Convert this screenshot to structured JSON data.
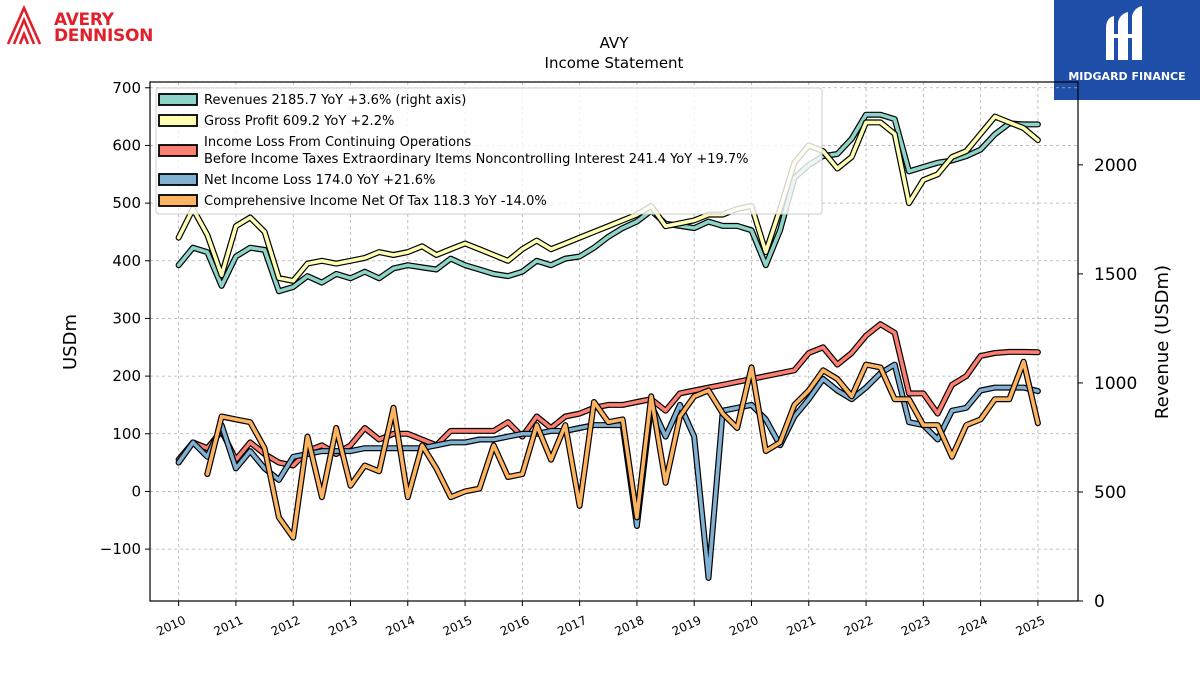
{
  "brand": {
    "company_logo_text": "AVERY\nDENNISON",
    "watermark_text": "MIDGARD FINANCE",
    "brand_color": "#e0202b",
    "watermark_color": "#1f4fa8"
  },
  "chart_data": {
    "type": "line",
    "title": "AVY",
    "subtitle": "Income Statement",
    "ylabel": "USDm",
    "y2label": "Revenue (USDm)",
    "ylim": [
      -190,
      710
    ],
    "y2lim": [
      0,
      2380
    ],
    "xlim": [
      2009.5,
      2025.7
    ],
    "yticks": [
      -100,
      0,
      100,
      200,
      300,
      400,
      500,
      600,
      700
    ],
    "yticklabels": [
      "−100",
      "0",
      "100",
      "200",
      "300",
      "400",
      "500",
      "600",
      "700"
    ],
    "y2ticks": [
      0,
      500,
      1000,
      1500,
      2000
    ],
    "y2ticklabels": [
      "0",
      "500",
      "1000",
      "1500",
      "2000"
    ],
    "xticks": [
      2010,
      2011,
      2012,
      2013,
      2014,
      2015,
      2016,
      2017,
      2018,
      2019,
      2020,
      2021,
      2022,
      2023,
      2024,
      2025
    ],
    "xticklabels": [
      "2010",
      "2011",
      "2012",
      "2013",
      "2014",
      "2015",
      "2016",
      "2017",
      "2018",
      "2019",
      "2020",
      "2021",
      "2022",
      "2023",
      "2024",
      "2025"
    ],
    "grid": true,
    "legend_position": "top-left",
    "series": [
      {
        "name": "Revenues",
        "legend": "Revenues  2185.7 YoY +3.6% (right axis)",
        "color": "#8dd3c7",
        "axis": "right",
        "x": [
          2010.0,
          2010.25,
          2010.5,
          2010.75,
          2011.0,
          2011.25,
          2011.5,
          2011.75,
          2012.0,
          2012.25,
          2012.5,
          2012.75,
          2013.0,
          2013.25,
          2013.5,
          2013.75,
          2014.0,
          2014.25,
          2014.5,
          2014.75,
          2015.0,
          2015.25,
          2015.5,
          2015.75,
          2016.0,
          2016.25,
          2016.5,
          2016.75,
          2017.0,
          2017.25,
          2017.5,
          2017.75,
          2018.0,
          2018.25,
          2018.5,
          2018.75,
          2019.0,
          2019.25,
          2019.5,
          2019.75,
          2020.0,
          2020.25,
          2020.5,
          2020.75,
          2021.0,
          2021.25,
          2021.5,
          2021.75,
          2022.0,
          2022.25,
          2022.5,
          2022.75,
          2023.0,
          2023.25,
          2023.5,
          2023.75,
          2024.0,
          2024.25,
          2024.5,
          2024.75,
          2025.0
        ],
        "values": [
          1540,
          1620,
          1600,
          1445,
          1580,
          1620,
          1610,
          1420,
          1440,
          1490,
          1460,
          1500,
          1480,
          1510,
          1480,
          1525,
          1540,
          1530,
          1520,
          1570,
          1540,
          1520,
          1500,
          1490,
          1510,
          1560,
          1540,
          1570,
          1580,
          1620,
          1670,
          1710,
          1740,
          1790,
          1730,
          1720,
          1710,
          1740,
          1720,
          1720,
          1700,
          1540,
          1700,
          1940,
          2000,
          2040,
          2050,
          2120,
          2230,
          2230,
          2210,
          1970,
          1990,
          2010,
          2020,
          2040,
          2070,
          2140,
          2190,
          2185.7,
          2185.7
        ]
      },
      {
        "name": "Gross Profit",
        "legend": "Gross Profit  609.2 YoY +2.2%",
        "color": "#ffffb3",
        "axis": "left",
        "x": [
          2010.0,
          2010.25,
          2010.5,
          2010.75,
          2011.0,
          2011.25,
          2011.5,
          2011.75,
          2012.0,
          2012.25,
          2012.5,
          2012.75,
          2013.0,
          2013.25,
          2013.5,
          2013.75,
          2014.0,
          2014.25,
          2014.5,
          2014.75,
          2015.0,
          2015.25,
          2015.5,
          2015.75,
          2016.0,
          2016.25,
          2016.5,
          2016.75,
          2017.0,
          2017.25,
          2017.5,
          2017.75,
          2018.0,
          2018.25,
          2018.5,
          2018.75,
          2019.0,
          2019.25,
          2019.5,
          2019.75,
          2020.0,
          2020.25,
          2020.5,
          2020.75,
          2021.0,
          2021.25,
          2021.5,
          2021.75,
          2022.0,
          2022.25,
          2022.5,
          2022.75,
          2023.0,
          2023.25,
          2023.5,
          2023.75,
          2024.0,
          2024.25,
          2024.5,
          2024.75,
          2025.0
        ],
        "values": [
          440,
          490,
          445,
          375,
          460,
          475,
          450,
          370,
          365,
          395,
          400,
          395,
          400,
          405,
          415,
          410,
          415,
          425,
          410,
          420,
          430,
          420,
          410,
          400,
          420,
          435,
          420,
          430,
          440,
          450,
          460,
          470,
          480,
          495,
          460,
          465,
          470,
          480,
          480,
          490,
          495,
          415,
          490,
          570,
          600,
          590,
          560,
          580,
          640,
          640,
          620,
          500,
          540,
          550,
          580,
          590,
          620,
          650,
          640,
          630,
          609.2
        ]
      },
      {
        "name": "Income Loss From Continuing Operations Before Income Taxes Extraordinary Items Noncontrolling Interest",
        "legend_line1": "Income Loss From Continuing Operations",
        "legend_line2": "Before Income Taxes Extraordinary Items Noncontrolling Interest  241.4 YoY +19.7%",
        "color": "#fb8072",
        "axis": "left",
        "x": [
          2010.0,
          2010.25,
          2010.5,
          2010.75,
          2011.0,
          2011.25,
          2011.5,
          2011.75,
          2012.0,
          2012.25,
          2012.5,
          2012.75,
          2013.0,
          2013.25,
          2013.5,
          2013.75,
          2014.0,
          2014.25,
          2014.5,
          2014.75,
          2015.0,
          2015.25,
          2015.5,
          2015.75,
          2016.0,
          2016.25,
          2016.5,
          2016.75,
          2017.0,
          2017.25,
          2017.5,
          2017.75,
          2018.0,
          2018.25,
          2018.5,
          2018.75,
          2019.0,
          2019.25,
          2019.5,
          2019.75,
          2020.0,
          2020.25,
          2020.5,
          2020.75,
          2021.0,
          2021.25,
          2021.5,
          2021.75,
          2022.0,
          2022.25,
          2022.5,
          2022.75,
          2023.0,
          2023.25,
          2023.5,
          2023.75,
          2024.0,
          2024.25,
          2024.5,
          2024.75,
          2025.0
        ],
        "values": [
          55,
          85,
          75,
          105,
          55,
          85,
          65,
          50,
          45,
          70,
          80,
          65,
          80,
          110,
          90,
          100,
          100,
          90,
          80,
          105,
          105,
          105,
          105,
          120,
          95,
          130,
          110,
          130,
          135,
          145,
          150,
          150,
          155,
          160,
          140,
          170,
          175,
          180,
          185,
          190,
          195,
          200,
          205,
          210,
          240,
          250,
          220,
          240,
          270,
          290,
          275,
          170,
          170,
          135,
          185,
          200,
          235,
          240,
          242,
          242,
          241.4
        ]
      },
      {
        "name": "Net Income Loss",
        "legend": "Net Income Loss  174.0 YoY +21.6%",
        "color": "#80b1d3",
        "axis": "left",
        "x": [
          2010.0,
          2010.25,
          2010.5,
          2010.75,
          2011.0,
          2011.25,
          2011.5,
          2011.75,
          2012.0,
          2012.25,
          2012.5,
          2012.75,
          2013.0,
          2013.25,
          2013.5,
          2013.75,
          2014.0,
          2014.25,
          2014.5,
          2014.75,
          2015.0,
          2015.25,
          2015.5,
          2015.75,
          2016.0,
          2016.25,
          2016.5,
          2016.75,
          2017.0,
          2017.25,
          2017.5,
          2017.75,
          2018.0,
          2018.25,
          2018.5,
          2018.75,
          2019.0,
          2019.25,
          2019.5,
          2019.75,
          2020.0,
          2020.25,
          2020.5,
          2020.75,
          2021.0,
          2021.25,
          2021.5,
          2021.75,
          2022.0,
          2022.25,
          2022.5,
          2022.75,
          2023.0,
          2023.25,
          2023.5,
          2023.75,
          2024.0,
          2024.25,
          2024.5,
          2024.75,
          2025.0
        ],
        "values": [
          50,
          85,
          60,
          115,
          40,
          70,
          40,
          20,
          60,
          65,
          70,
          70,
          70,
          75,
          75,
          75,
          75,
          75,
          80,
          85,
          85,
          90,
          90,
          95,
          100,
          100,
          105,
          105,
          110,
          115,
          115,
          115,
          -60,
          150,
          95,
          150,
          95,
          -150,
          140,
          145,
          150,
          125,
          80,
          130,
          160,
          195,
          175,
          160,
          180,
          205,
          220,
          120,
          115,
          90,
          140,
          145,
          175,
          180,
          180,
          180,
          174.0
        ]
      },
      {
        "name": "Comprehensive Income Net Of Tax",
        "legend": "Comprehensive Income Net Of Tax  118.3 YoY -14.0%",
        "color": "#fdb462",
        "axis": "left",
        "x": [
          2010.5,
          2010.75,
          2011.0,
          2011.25,
          2011.5,
          2011.75,
          2012.0,
          2012.25,
          2012.5,
          2012.75,
          2013.0,
          2013.25,
          2013.5,
          2013.75,
          2014.0,
          2014.25,
          2014.5,
          2014.75,
          2015.0,
          2015.25,
          2015.5,
          2015.75,
          2016.0,
          2016.25,
          2016.5,
          2016.75,
          2017.0,
          2017.25,
          2017.5,
          2017.75,
          2018.0,
          2018.25,
          2018.5,
          2018.75,
          2019.0,
          2019.25,
          2019.5,
          2019.75,
          2020.0,
          2020.25,
          2020.5,
          2020.75,
          2021.0,
          2021.25,
          2021.5,
          2021.75,
          2022.0,
          2022.25,
          2022.5,
          2022.75,
          2023.0,
          2023.25,
          2023.5,
          2023.75,
          2024.0,
          2024.25,
          2024.5,
          2024.75,
          2025.0
        ],
        "values": [
          30,
          130,
          125,
          120,
          75,
          -45,
          -80,
          95,
          -10,
          110,
          10,
          45,
          35,
          145,
          -10,
          80,
          40,
          -10,
          0,
          5,
          80,
          25,
          30,
          115,
          55,
          115,
          -25,
          155,
          120,
          125,
          -45,
          165,
          15,
          130,
          165,
          175,
          135,
          110,
          215,
          70,
          85,
          150,
          175,
          210,
          195,
          165,
          220,
          215,
          160,
          160,
          115,
          115,
          60,
          115,
          125,
          160,
          160,
          225,
          118.3
        ]
      }
    ]
  }
}
